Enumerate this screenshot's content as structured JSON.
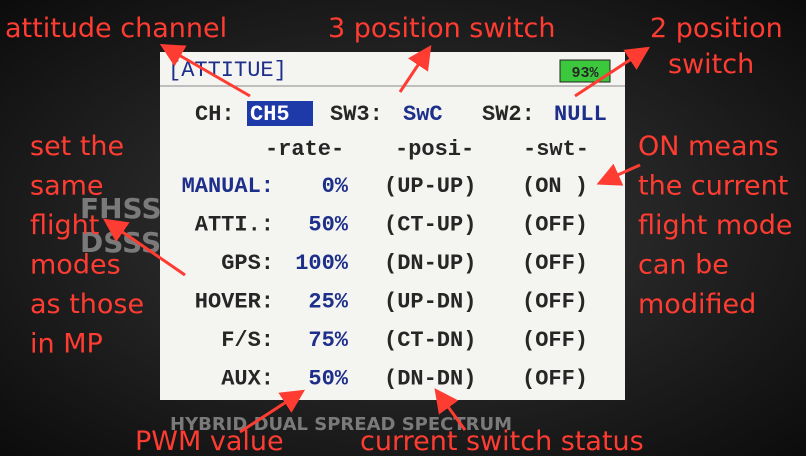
{
  "annotations": {
    "attitude_channel": "attitude channel",
    "three_position_switch": "3 position switch",
    "two_position_switch": [
      "2 position",
      "switch"
    ],
    "same_modes": [
      "set the",
      "same",
      "flight",
      "modes",
      "as those",
      "in MP"
    ],
    "on_means": [
      "ON means",
      "the current",
      "flight mode",
      "can be",
      "modified"
    ],
    "pwm_value": "PWM value",
    "switch_status": "current switch status"
  },
  "device": {
    "brand": "HYBRID DUAL SPREAD SPECTRUM",
    "fhss": "FHSS",
    "dsss": "DSSS"
  },
  "screen": {
    "title": "[ATTITUE]",
    "battery": "93%",
    "ch_label": "CH:",
    "ch_value": "CH5",
    "sw3_label": "SW3:",
    "sw3_value": "SwC",
    "sw2_label": "SW2:",
    "sw2_value": "NULL",
    "headers": [
      "-rate-",
      "-posi-",
      "-swt-"
    ],
    "rows": [
      [
        "MANUAL:",
        "0%",
        "(UP-UP)",
        "(ON )"
      ],
      [
        "ATTI.:",
        "50%",
        "(CT-UP)",
        "(OFF)"
      ],
      [
        "GPS:",
        "100%",
        "(DN-UP)",
        "(OFF)"
      ],
      [
        "HOVER:",
        "25%",
        "(UP-DN)",
        "(OFF)"
      ],
      [
        "F/S:",
        "75%",
        "(CT-DN)",
        "(OFF)"
      ],
      [
        "AUX:",
        "50%",
        "(DN-DN)",
        "(OFF)"
      ]
    ]
  }
}
